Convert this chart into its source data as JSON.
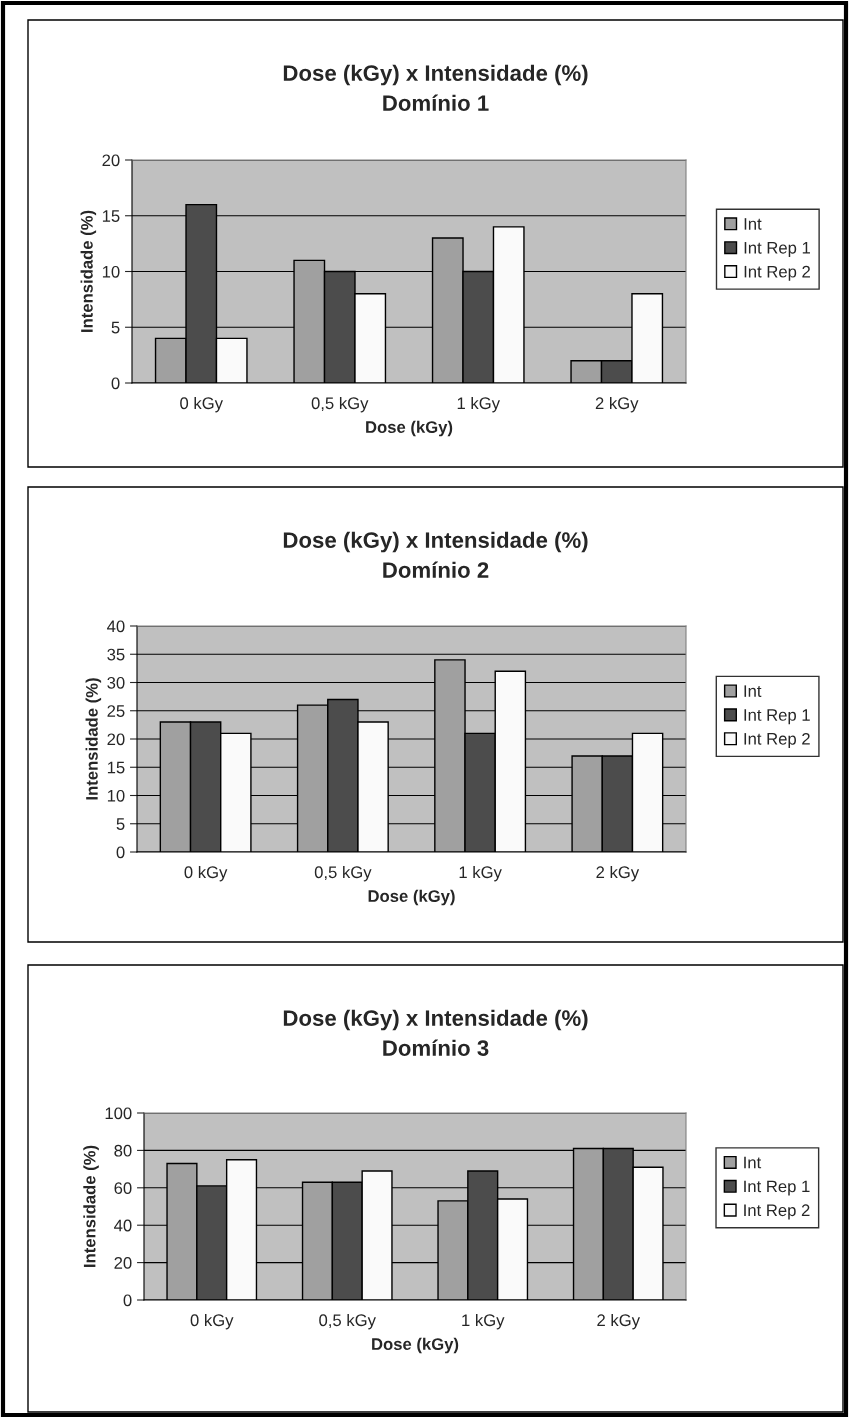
{
  "chart_data": [
    {
      "type": "bar",
      "title": "Dose (kGy) x Intensidade (%)",
      "subtitle": "Domínio 1",
      "xlabel": "Dose (kGy)",
      "ylabel": "Intensidade (%)",
      "categories": [
        "0 kGy",
        "0,5 kGy",
        "1 kGy",
        "2 kGy"
      ],
      "series": [
        {
          "name": "Int",
          "color": "#a0a0a0",
          "values": [
            4,
            11,
            13,
            2
          ]
        },
        {
          "name": "Int Rep 1",
          "color": "#4c4c4c",
          "values": [
            16,
            10,
            10,
            2
          ]
        },
        {
          "name": "Int Rep 2",
          "color": "#fafafa",
          "values": [
            4,
            8,
            14,
            8
          ]
        }
      ],
      "ylim": [
        0,
        20
      ],
      "yticks": [
        0,
        5,
        10,
        15,
        20
      ],
      "grid": "y",
      "legend": "right"
    },
    {
      "type": "bar",
      "title": "Dose (kGy) x Intensidade (%)",
      "subtitle": "Domínio 2",
      "xlabel": "Dose (kGy)",
      "ylabel": "Intensidade (%)",
      "categories": [
        "0 kGy",
        "0,5 kGy",
        "1 kGy",
        "2 kGy"
      ],
      "series": [
        {
          "name": "Int",
          "color": "#a0a0a0",
          "values": [
            23,
            26,
            34,
            17
          ]
        },
        {
          "name": "Int Rep 1",
          "color": "#4c4c4c",
          "values": [
            23,
            27,
            21,
            17
          ]
        },
        {
          "name": "Int Rep 2",
          "color": "#fafafa",
          "values": [
            21,
            23,
            32,
            21
          ]
        }
      ],
      "ylim": [
        0,
        40
      ],
      "yticks": [
        0,
        5,
        10,
        15,
        20,
        25,
        30,
        35,
        40
      ],
      "grid": "y",
      "legend": "right"
    },
    {
      "type": "bar",
      "title": "Dose (kGy) x Intensidade (%)",
      "subtitle": "Domínio 3",
      "xlabel": "Dose (kGy)",
      "ylabel": "Intensidade (%)",
      "categories": [
        "0 kGy",
        "0,5 kGy",
        "1 kGy",
        "2 kGy"
      ],
      "series": [
        {
          "name": "Int",
          "color": "#a0a0a0",
          "values": [
            73,
            63,
            53,
            81
          ]
        },
        {
          "name": "Int Rep 1",
          "color": "#4c4c4c",
          "values": [
            61,
            63,
            69,
            81
          ]
        },
        {
          "name": "Int Rep 2",
          "color": "#fafafa",
          "values": [
            75,
            69,
            54,
            71
          ]
        }
      ],
      "ylim": [
        0,
        100
      ],
      "yticks": [
        0,
        20,
        40,
        60,
        80,
        100
      ],
      "grid": "y",
      "legend": "right"
    }
  ]
}
